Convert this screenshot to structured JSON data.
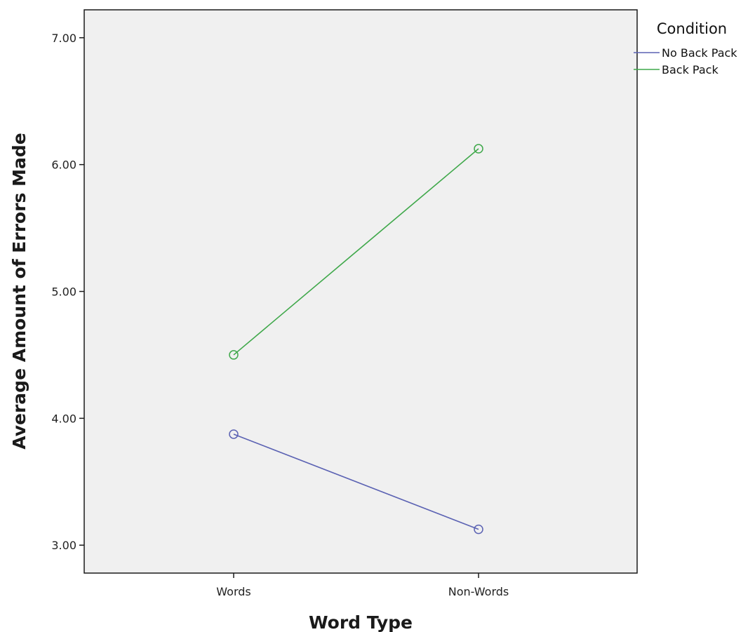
{
  "chart_data": {
    "type": "line",
    "xlabel": "Word Type",
    "ylabel": "Average Amount of Errors Made",
    "categories": [
      "Words",
      "Non-Words"
    ],
    "ylim": [
      2.78,
      7.22
    ],
    "yticks": [
      3.0,
      4.0,
      5.0,
      6.0,
      7.0
    ],
    "ytick_labels": [
      "3.00",
      "4.00",
      "5.00",
      "6.00",
      "7.00"
    ],
    "grid": false,
    "legend": {
      "title": "Condition",
      "placement": "top-right-outside"
    },
    "series": [
      {
        "name": "No Back Pack",
        "values": [
          3.875,
          3.125
        ],
        "color": "#5b62b3"
      },
      {
        "name": "Back Pack",
        "values": [
          4.5,
          6.125
        ],
        "color": "#3fa84a"
      }
    ],
    "plot_background": "#f0f0f0"
  }
}
